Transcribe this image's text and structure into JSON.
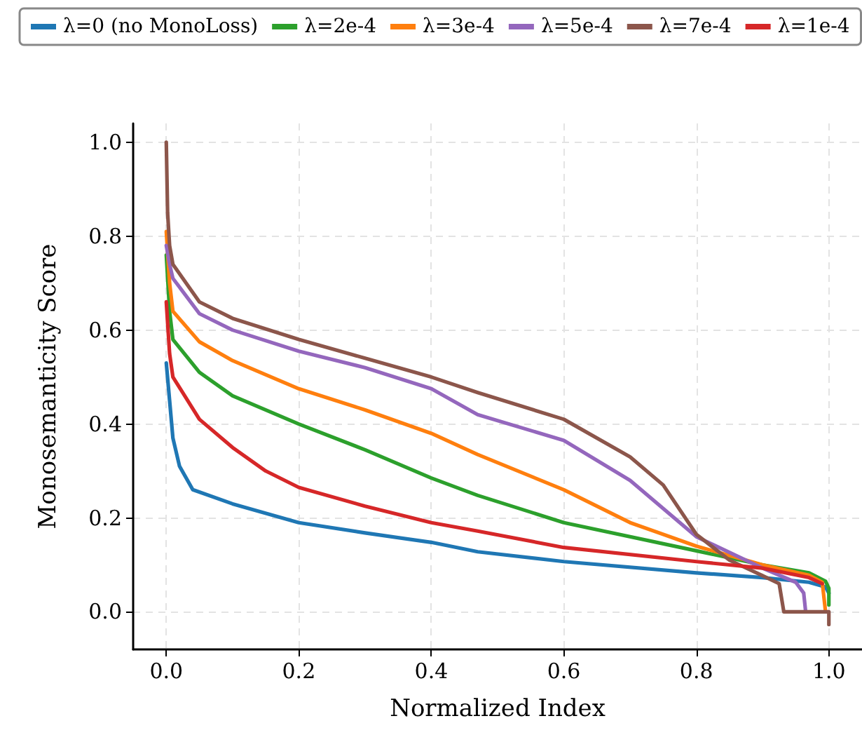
{
  "chart_data": {
    "type": "line",
    "xlabel": "Normalized Index",
    "ylabel": "Monosemanticity Score",
    "xlim": [
      -0.05,
      1.05
    ],
    "ylim": [
      -0.08,
      1.04
    ],
    "xticks": [
      {
        "value": 0,
        "label": "0.0"
      },
      {
        "value": 0.2,
        "label": "0.2"
      },
      {
        "value": 0.4,
        "label": "0.4"
      },
      {
        "value": 0.6,
        "label": "0.6"
      },
      {
        "value": 0.8,
        "label": "0.8"
      },
      {
        "value": 1,
        "label": "1.0"
      }
    ],
    "yticks": [
      {
        "value": 0,
        "label": "0.0"
      },
      {
        "value": 0.2,
        "label": "0.2"
      },
      {
        "value": 0.4,
        "label": "0.4"
      },
      {
        "value": 0.6,
        "label": "0.6"
      },
      {
        "value": 0.8,
        "label": "0.8"
      },
      {
        "value": 1,
        "label": "1.0"
      }
    ],
    "grid": true,
    "legend": "top",
    "marker": "none",
    "line_style": "solid",
    "series": [
      {
        "name": "λ=0 (no MonoLoss)",
        "color": "#1f77b4",
        "x": [
          0,
          0.005,
          0.01,
          0.02,
          0.04,
          0.1,
          0.2,
          0.3,
          0.4,
          0.47,
          0.6,
          0.8,
          0.9,
          0.97,
          0.995,
          1.0
        ],
        "values": [
          0.53,
          0.45,
          0.37,
          0.31,
          0.26,
          0.23,
          0.19,
          0.168,
          0.148,
          0.128,
          0.107,
          0.083,
          0.073,
          0.063,
          0.053,
          0.04
        ]
      },
      {
        "name": "λ=2e-4",
        "color": "#2ca02c",
        "x": [
          0,
          0.005,
          0.01,
          0.05,
          0.1,
          0.2,
          0.3,
          0.4,
          0.47,
          0.6,
          0.8,
          0.9,
          0.97,
          0.995,
          1.0,
          1.0
        ],
        "values": [
          0.76,
          0.64,
          0.58,
          0.51,
          0.46,
          0.4,
          0.345,
          0.285,
          0.248,
          0.19,
          0.13,
          0.1,
          0.083,
          0.065,
          0.05,
          0.015
        ]
      },
      {
        "name": "λ=3e-4",
        "color": "#ff7f0e",
        "x": [
          0,
          0.005,
          0.01,
          0.05,
          0.1,
          0.2,
          0.3,
          0.4,
          0.47,
          0.6,
          0.7,
          0.8,
          0.9,
          0.97,
          0.99,
          0.995
        ],
        "values": [
          0.81,
          0.7,
          0.64,
          0.575,
          0.535,
          0.475,
          0.43,
          0.38,
          0.335,
          0.26,
          0.19,
          0.14,
          0.1,
          0.078,
          0.063,
          0.0
        ]
      },
      {
        "name": "λ=5e-4",
        "color": "#9467bd",
        "x": [
          0,
          0.005,
          0.01,
          0.05,
          0.1,
          0.2,
          0.3,
          0.4,
          0.47,
          0.6,
          0.7,
          0.8,
          0.9,
          0.95,
          0.962,
          0.965
        ],
        "values": [
          0.78,
          0.74,
          0.71,
          0.635,
          0.6,
          0.555,
          0.52,
          0.475,
          0.42,
          0.365,
          0.28,
          0.16,
          0.093,
          0.063,
          0.04,
          0.0
        ]
      },
      {
        "name": "λ=7e-4",
        "color": "#8c564b",
        "x": [
          0,
          0.002,
          0.005,
          0.01,
          0.05,
          0.1,
          0.2,
          0.3,
          0.4,
          0.47,
          0.6,
          0.7,
          0.75,
          0.8,
          0.85,
          0.9,
          0.925,
          0.932,
          1.0,
          1.0
        ],
        "values": [
          1.0,
          0.85,
          0.78,
          0.74,
          0.66,
          0.625,
          0.58,
          0.54,
          0.5,
          0.467,
          0.41,
          0.33,
          0.27,
          0.165,
          0.11,
          0.077,
          0.06,
          0.0,
          0.0,
          -0.027
        ]
      },
      {
        "name": "λ=1e-4",
        "color": "#d62728",
        "x": [
          0,
          0.005,
          0.01,
          0.05,
          0.1,
          0.15,
          0.2,
          0.3,
          0.4,
          0.47,
          0.6,
          0.8,
          0.9,
          0.97,
          0.99
        ],
        "values": [
          0.66,
          0.55,
          0.5,
          0.41,
          0.35,
          0.3,
          0.265,
          0.225,
          0.19,
          0.172,
          0.137,
          0.107,
          0.093,
          0.073,
          0.06
        ]
      }
    ]
  }
}
